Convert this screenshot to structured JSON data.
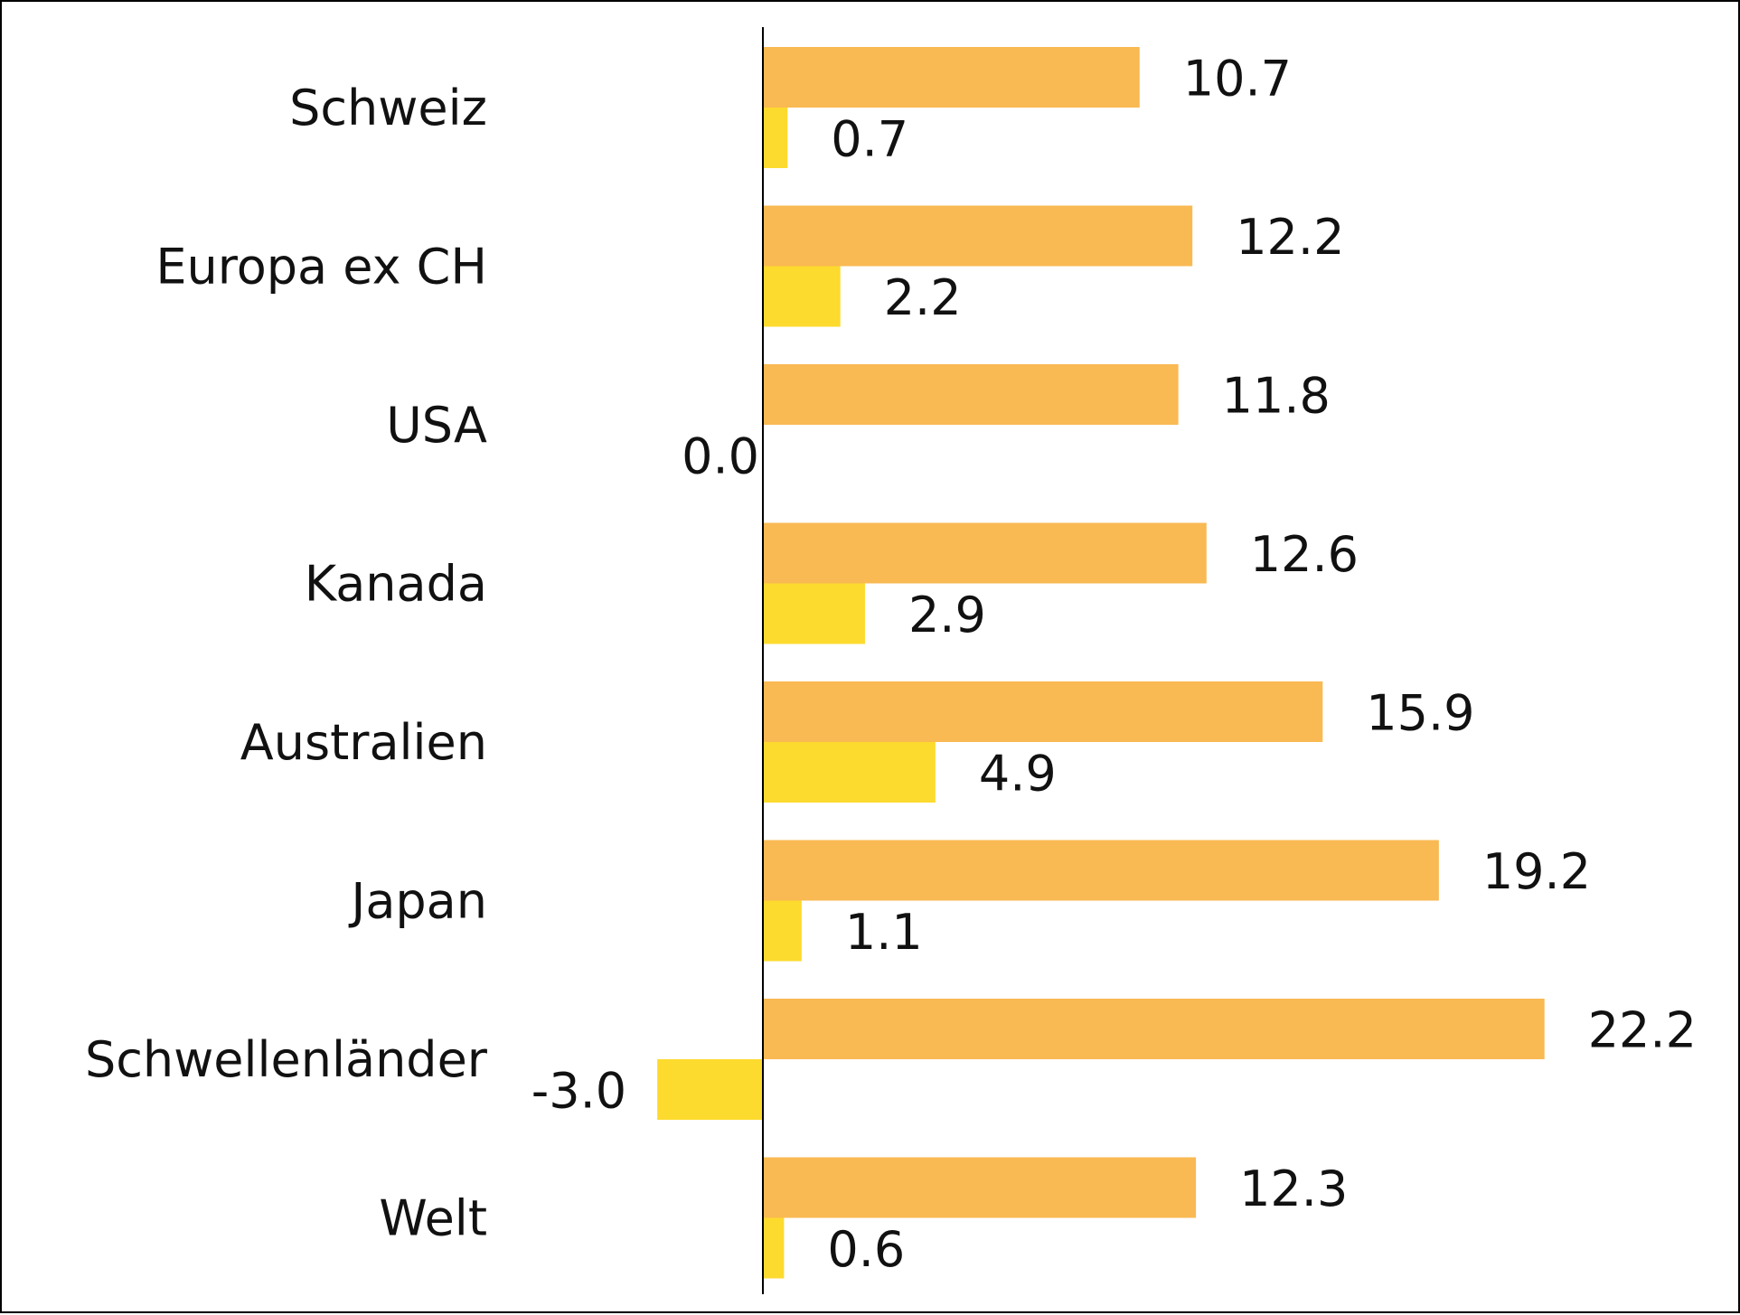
{
  "chart_data": {
    "type": "bar",
    "orientation": "horizontal",
    "categories": [
      "Schweiz",
      "Europa ex CH",
      "USA",
      "Kanada",
      "Australien",
      "Japan",
      "Schwellenländer",
      "Welt"
    ],
    "series": [
      {
        "values": [
          10.7,
          12.2,
          11.8,
          12.6,
          15.9,
          19.2,
          22.2,
          12.3
        ],
        "labels": [
          "10.7",
          "12.2",
          "11.8",
          "12.6",
          "15.9",
          "19.2",
          "22.2",
          "12.3"
        ],
        "color": "#F9B953"
      },
      {
        "values": [
          0.7,
          2.2,
          0.0,
          2.9,
          4.9,
          1.1,
          -3.0,
          0.6
        ],
        "labels": [
          "0.7",
          "2.2",
          "0.0",
          "2.9",
          "4.9",
          "1.1",
          "-3.0",
          "0.6"
        ],
        "color": "#FDDA2E"
      }
    ],
    "xlim": [
      -3.0,
      22.2
    ],
    "grid": false,
    "legend": "none",
    "title": "",
    "xlabel": "",
    "ylabel": ""
  }
}
